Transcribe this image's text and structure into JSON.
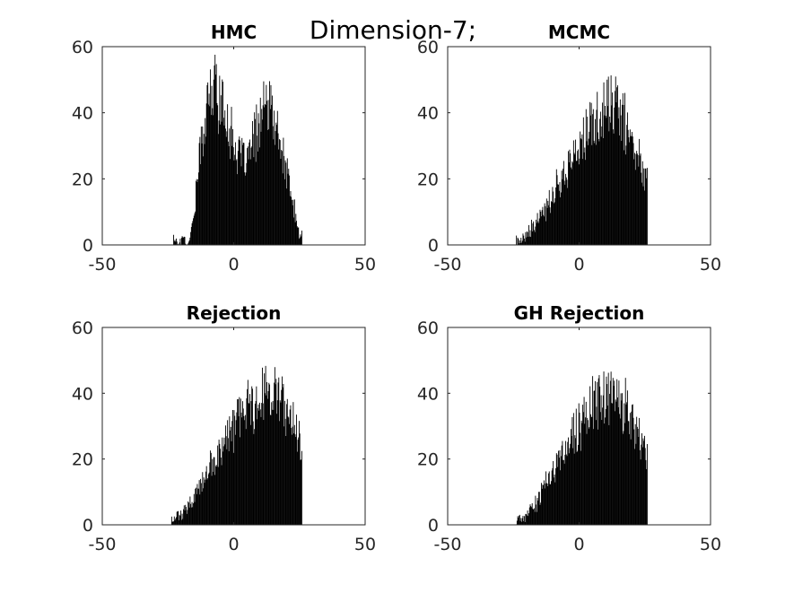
{
  "figure": {
    "suptitle": "Dimension-7;"
  },
  "chart_data": [
    {
      "type": "bar",
      "title": "HMC",
      "xlim": [
        -50,
        50
      ],
      "ylim": [
        0,
        60
      ],
      "xticks": [
        -50,
        0,
        50
      ],
      "yticks": [
        0,
        20,
        40,
        60
      ],
      "xtick_labels": [
        "-50",
        "0",
        "50"
      ],
      "ytick_labels": [
        "0",
        "20",
        "40",
        "60"
      ],
      "bar_color": "#000000",
      "bin_width": 0.25,
      "x": [
        -23,
        -22,
        -21,
        -20,
        -19,
        -18,
        -17,
        -16,
        -15,
        -14,
        -13,
        -12,
        -11,
        -10,
        -9,
        -8,
        -7,
        -6,
        -5,
        -4,
        -3,
        -2,
        -1,
        0,
        1,
        2,
        3,
        4,
        5,
        6,
        7,
        8,
        9,
        10,
        11,
        12,
        13,
        14,
        15,
        16,
        17,
        18,
        19,
        20,
        21,
        22,
        23,
        24,
        25
      ],
      "values": [
        2,
        2,
        0,
        2,
        2,
        0,
        3,
        5,
        12,
        20,
        27,
        33,
        38,
        42,
        45,
        46,
        50,
        45,
        43,
        40,
        39,
        37,
        33,
        31,
        28,
        27,
        26,
        25,
        26,
        28,
        30,
        33,
        36,
        38,
        40,
        41,
        42,
        40,
        38,
        35,
        32,
        29,
        25,
        22,
        18,
        14,
        10,
        6,
        3
      ]
    },
    {
      "type": "bar",
      "title": "MCMC",
      "xlim": [
        -50,
        50
      ],
      "ylim": [
        0,
        60
      ],
      "xticks": [
        -50,
        0,
        50
      ],
      "yticks": [
        0,
        20,
        40,
        60
      ],
      "xtick_labels": [
        "-50",
        "0",
        "50"
      ],
      "ytick_labels": [
        "0",
        "20",
        "40",
        "60"
      ],
      "bar_color": "#000000",
      "bin_width": 0.25,
      "x": [
        -24,
        -23,
        -22,
        -21,
        -20,
        -19,
        -18,
        -17,
        -16,
        -15,
        -14,
        -13,
        -12,
        -11,
        -10,
        -9,
        -8,
        -7,
        -6,
        -5,
        -4,
        -3,
        -2,
        -1,
        0,
        1,
        2,
        3,
        4,
        5,
        6,
        7,
        8,
        9,
        10,
        11,
        12,
        13,
        14,
        15,
        16,
        17,
        18,
        19,
        20,
        21,
        22,
        23,
        24,
        25
      ],
      "values": [
        1,
        1,
        2,
        2,
        3,
        4,
        5,
        6,
        7,
        8,
        9,
        11,
        12,
        14,
        16,
        17,
        19,
        20,
        22,
        23,
        24,
        26,
        27,
        28,
        30,
        31,
        32,
        34,
        35,
        36,
        37,
        38,
        39,
        40,
        41,
        42,
        43,
        42,
        41,
        40,
        39,
        37,
        35,
        33,
        31,
        29,
        27,
        25,
        24,
        22
      ]
    },
    {
      "type": "bar",
      "title": "Rejection",
      "xlim": [
        -50,
        50
      ],
      "ylim": [
        0,
        60
      ],
      "xticks": [
        -50,
        0,
        50
      ],
      "yticks": [
        0,
        20,
        40,
        60
      ],
      "xtick_labels": [
        "-50",
        "0",
        "50"
      ],
      "ytick_labels": [
        "0",
        "20",
        "40",
        "60"
      ],
      "bar_color": "#000000",
      "bin_width": 0.25,
      "x": [
        -24,
        -23,
        -22,
        -21,
        -20,
        -19,
        -18,
        -17,
        -16,
        -15,
        -14,
        -13,
        -12,
        -11,
        -10,
        -9,
        -8,
        -7,
        -6,
        -5,
        -4,
        -3,
        -2,
        -1,
        0,
        1,
        2,
        3,
        4,
        5,
        6,
        7,
        8,
        9,
        10,
        11,
        12,
        13,
        14,
        15,
        16,
        17,
        18,
        19,
        20,
        21,
        22,
        23,
        24,
        25
      ],
      "values": [
        1,
        2,
        2,
        3,
        3,
        4,
        5,
        6,
        7,
        9,
        10,
        11,
        13,
        14,
        16,
        17,
        19,
        20,
        22,
        23,
        25,
        26,
        27,
        28,
        30,
        31,
        32,
        33,
        34,
        35,
        36,
        37,
        38,
        39,
        40,
        40,
        41,
        41,
        40,
        40,
        39,
        38,
        37,
        36,
        34,
        33,
        31,
        29,
        28,
        26
      ]
    },
    {
      "type": "bar",
      "title": "GH Rejection",
      "xlim": [
        -50,
        50
      ],
      "ylim": [
        0,
        60
      ],
      "xticks": [
        -50,
        0,
        50
      ],
      "yticks": [
        0,
        20,
        40,
        60
      ],
      "xtick_labels": [
        "-50",
        "0",
        "50"
      ],
      "ytick_labels": [
        "0",
        "20",
        "40",
        "60"
      ],
      "bar_color": "#000000",
      "bin_width": 0.25,
      "x": [
        -24,
        -23,
        -22,
        -21,
        -20,
        -19,
        -18,
        -17,
        -16,
        -15,
        -14,
        -13,
        -12,
        -11,
        -10,
        -9,
        -8,
        -7,
        -6,
        -5,
        -4,
        -3,
        -2,
        -1,
        0,
        1,
        2,
        3,
        4,
        5,
        6,
        7,
        8,
        9,
        10,
        11,
        12,
        13,
        14,
        15,
        16,
        17,
        18,
        19,
        20,
        21,
        22,
        23,
        24,
        25
      ],
      "values": [
        1,
        1,
        2,
        2,
        3,
        4,
        5,
        6,
        7,
        9,
        10,
        12,
        13,
        15,
        16,
        18,
        19,
        21,
        22,
        24,
        25,
        26,
        28,
        29,
        30,
        31,
        33,
        34,
        35,
        36,
        37,
        37,
        38,
        39,
        39,
        39,
        40,
        39,
        39,
        38,
        37,
        36,
        35,
        33,
        31,
        30,
        28,
        26,
        24,
        22
      ]
    }
  ]
}
